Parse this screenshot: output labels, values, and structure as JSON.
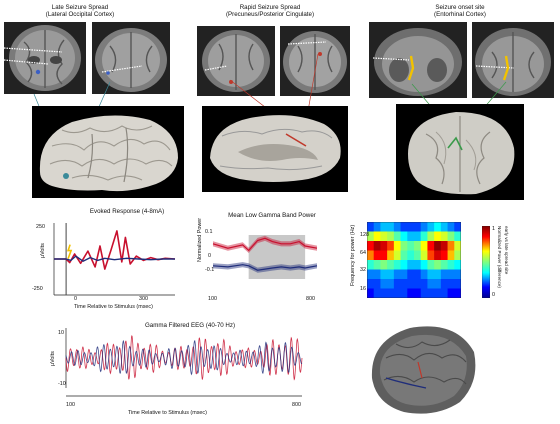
{
  "captions": {
    "late": [
      "Late Seizure Spread",
      "(Lateral Occipital Cortex)"
    ],
    "rapid": [
      "Rapid Seizure Spread",
      "(Precuneus/Posterior Cingulate)"
    ],
    "onset": [
      "Seizure onset site",
      "(Entorhinal Cortex)"
    ]
  },
  "colors": {
    "trace_red": "#c8102e",
    "trace_blue": "#1f2d7a",
    "stim_marker": "#f2c200",
    "gray_box": "#c8c8c8",
    "late_line": "#3a8a99",
    "rapid_line": "#c0392b",
    "onset_line": "#3a9a4a"
  },
  "charts_text": {
    "evoked": {
      "title": "Evoked Response (4-8mA)",
      "ylabel": "µVolts",
      "yticks": [
        "250",
        "-250"
      ],
      "xticks": [
        "0",
        "300"
      ],
      "xlabel": "Time Relative to Stimulus (msec)"
    },
    "gamma_power": {
      "title": "Mean Low Gamma Band Power",
      "ylabel": "Normalized Power",
      "yticks": [
        "0.1",
        "0",
        "-0.1"
      ],
      "xticks": [
        "100",
        "800"
      ]
    },
    "eeg": {
      "title": "Gamma Filtered EEG (40-70 Hz)",
      "ylabel": "µVolts",
      "yticks": [
        "10",
        "-10"
      ],
      "xticks": [
        "100",
        "800"
      ],
      "xlabel": "Time Relative to Stimulus (msec)"
    },
    "heatmap": {
      "ylabel": "Frequency for power (Hz)",
      "yticks": [
        "128",
        "64",
        "32",
        "16"
      ],
      "cbar_ticks": [
        "1",
        "0"
      ],
      "cbar_label_1": "Normalized Power (difference)",
      "cbar_label_2": "early vs late spread site"
    }
  },
  "chart_data": [
    {
      "type": "line",
      "title": "Evoked Response (4-8mA)",
      "xlabel": "Time Relative to Stimulus (msec)",
      "ylabel": "µVolts",
      "xlim": [
        -50,
        450
      ],
      "ylim": [
        -250,
        250
      ],
      "series": [
        {
          "color": "red",
          "x": [
            -50,
            -20,
            0,
            15,
            35,
            60,
            90,
            120,
            140,
            160,
            185,
            210,
            230,
            245,
            265,
            290,
            320,
            350,
            380,
            410,
            450
          ],
          "y": [
            0,
            0,
            0,
            -25,
            35,
            -30,
            55,
            -55,
            90,
            -70,
            60,
            195,
            -20,
            150,
            -35,
            20,
            -10,
            10,
            -5,
            5,
            0
          ]
        },
        {
          "color": "blue",
          "x": [
            -50,
            0,
            20,
            40,
            70,
            100,
            130,
            160,
            200,
            250,
            300,
            350,
            400,
            450
          ],
          "y": [
            0,
            0,
            -10,
            20,
            -15,
            10,
            -10,
            5,
            -5,
            5,
            0,
            -5,
            0,
            0
          ]
        }
      ]
    },
    {
      "type": "line",
      "title": "Mean Low Gamma Band Power",
      "ylabel": "Normalized Power",
      "xlim": [
        100,
        800
      ],
      "ylim": [
        -0.15,
        0.15
      ],
      "highlight_x": [
        340,
        720
      ],
      "series": [
        {
          "color": "red",
          "x": [
            100,
            200,
            300,
            340,
            400,
            450,
            500,
            560,
            620,
            680,
            720,
            760,
            800
          ],
          "y": [
            0.06,
            0.04,
            0.055,
            0.03,
            0.075,
            0.085,
            0.07,
            0.06,
            0.06,
            0.07,
            0.05,
            0.045,
            0.04
          ]
        },
        {
          "color": "blue",
          "x": [
            100,
            200,
            300,
            340,
            400,
            450,
            500,
            560,
            620,
            680,
            720,
            760,
            800
          ],
          "y": [
            -0.04,
            -0.045,
            -0.035,
            -0.04,
            -0.06,
            -0.055,
            -0.05,
            -0.045,
            -0.05,
            -0.045,
            -0.05,
            -0.045,
            -0.04
          ]
        }
      ]
    },
    {
      "type": "line",
      "title": "Gamma Filtered EEG (40-70 Hz)",
      "xlabel": "Time Relative to Stimulus (msec)",
      "ylabel": "µVolts",
      "xlim": [
        100,
        800
      ],
      "ylim": [
        -12,
        12
      ],
      "series": [
        {
          "color": "red",
          "freq_hz": 55,
          "amplitude": [
            4,
            9
          ]
        },
        {
          "color": "blue",
          "freq_hz": 52,
          "amplitude": [
            3,
            7
          ]
        }
      ]
    },
    {
      "type": "heatmap",
      "ylabel": "Frequency for power (Hz)",
      "yticks": [
        128,
        64,
        32,
        16
      ],
      "color_range": [
        0,
        1
      ],
      "rows": 8,
      "cols": 14,
      "values": [
        [
          0.2,
          0.25,
          0.3,
          0.3,
          0.25,
          0.2,
          0.2,
          0.2,
          0.25,
          0.3,
          0.35,
          0.3,
          0.25,
          0.2
        ],
        [
          0.55,
          0.65,
          0.6,
          0.55,
          0.45,
          0.35,
          0.3,
          0.3,
          0.4,
          0.55,
          0.65,
          0.6,
          0.5,
          0.4
        ],
        [
          0.85,
          0.95,
          0.9,
          0.8,
          0.65,
          0.5,
          0.45,
          0.5,
          0.65,
          0.85,
          0.98,
          0.92,
          0.75,
          0.6
        ],
        [
          0.75,
          0.85,
          0.85,
          0.7,
          0.6,
          0.45,
          0.4,
          0.45,
          0.6,
          0.8,
          0.9,
          0.85,
          0.7,
          0.55
        ],
        [
          0.4,
          0.45,
          0.5,
          0.45,
          0.4,
          0.35,
          0.3,
          0.3,
          0.35,
          0.45,
          0.5,
          0.45,
          0.4,
          0.35
        ],
        [
          0.25,
          0.25,
          0.3,
          0.3,
          0.25,
          0.25,
          0.2,
          0.2,
          0.25,
          0.3,
          0.3,
          0.25,
          0.25,
          0.25
        ],
        [
          0.2,
          0.2,
          0.25,
          0.25,
          0.2,
          0.2,
          0.2,
          0.2,
          0.2,
          0.25,
          0.25,
          0.2,
          0.2,
          0.2
        ],
        [
          0.15,
          0.2,
          0.2,
          0.2,
          0.2,
          0.2,
          0.15,
          0.15,
          0.2,
          0.2,
          0.2,
          0.2,
          0.15,
          0.15
        ]
      ]
    }
  ]
}
